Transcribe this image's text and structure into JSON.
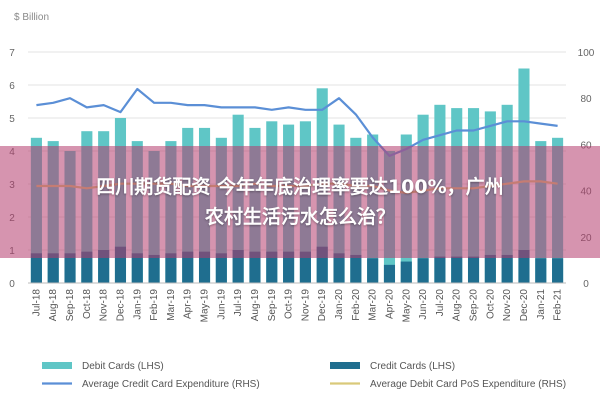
{
  "overlay": {
    "line1": "四川期货配资 今年年底治理率要达100%，广州",
    "line2": "农村生活污水怎么治？"
  },
  "chart_data": {
    "type": "bar",
    "unit_label": "$ Billion",
    "categories": [
      "Jul-18",
      "Aug-18",
      "Sep-18",
      "Oct-18",
      "Nov-18",
      "Dec-18",
      "Jan-19",
      "Feb-19",
      "Mar-19",
      "Apr-19",
      "May-19",
      "Jun-19",
      "Jul-19",
      "Aug-19",
      "Sep-19",
      "Oct-19",
      "Nov-19",
      "Dec-19",
      "Jan-20",
      "Feb-20",
      "Mar-20",
      "Apr-20",
      "May-20",
      "Jun-20",
      "Jul-20",
      "Aug-20",
      "Sep-20",
      "Oct-20",
      "Nov-20",
      "Dec-20",
      "Jan-21",
      "Feb-21"
    ],
    "y_left": {
      "ticks": [
        0,
        1,
        2,
        3,
        4,
        5,
        6,
        7
      ],
      "ylim": [
        0,
        7
      ]
    },
    "y_right": {
      "ticks": [
        0,
        20,
        40,
        60,
        80,
        100
      ],
      "ylim": [
        0,
        100
      ]
    },
    "grid": true,
    "series": [
      {
        "name": "Debit Cards (LHS)",
        "kind": "bar",
        "axis": "left",
        "color": "#5fc6c6",
        "values": [
          4.4,
          4.3,
          4.0,
          4.6,
          4.6,
          5.0,
          4.3,
          4.0,
          4.3,
          4.7,
          4.7,
          4.4,
          5.1,
          4.7,
          4.9,
          4.8,
          4.9,
          5.9,
          4.8,
          4.4,
          4.5,
          4.0,
          4.5,
          5.1,
          5.4,
          5.3,
          5.3,
          5.2,
          5.4,
          6.5,
          4.3,
          4.4
        ]
      },
      {
        "name": "Credit Cards (LHS)",
        "kind": "bar",
        "axis": "left",
        "color": "#1f6e8f",
        "values": [
          0.9,
          0.9,
          0.9,
          0.95,
          1.0,
          1.1,
          0.9,
          0.85,
          0.9,
          0.95,
          0.95,
          0.9,
          1.0,
          0.95,
          0.95,
          0.95,
          0.95,
          1.1,
          0.9,
          0.85,
          0.75,
          0.55,
          0.65,
          0.75,
          0.8,
          0.8,
          0.8,
          0.85,
          0.85,
          1.0,
          0.75,
          0.75
        ]
      },
      {
        "name": "Average Credit Card Expenditure (RHS)",
        "kind": "line",
        "axis": "right",
        "color": "#5b8fd6",
        "values": [
          77,
          78,
          80,
          76,
          77,
          74,
          84,
          78,
          78,
          77,
          77,
          76,
          76,
          76,
          75,
          76,
          75,
          75,
          80,
          73,
          63,
          55,
          58,
          62,
          64,
          66,
          66,
          68,
          70,
          70,
          69,
          68
        ]
      },
      {
        "name": "Average Debit Card PoS Expenditure (RHS)",
        "kind": "line",
        "axis": "right",
        "color": "#d9c97a",
        "values": [
          42,
          42,
          42,
          41,
          42,
          43,
          43,
          43,
          43,
          42,
          42,
          42,
          42,
          43,
          42,
          42,
          42,
          43,
          43,
          42,
          42,
          40,
          39,
          40,
          41,
          41,
          41,
          42,
          43,
          44,
          44,
          43
        ]
      }
    ]
  }
}
